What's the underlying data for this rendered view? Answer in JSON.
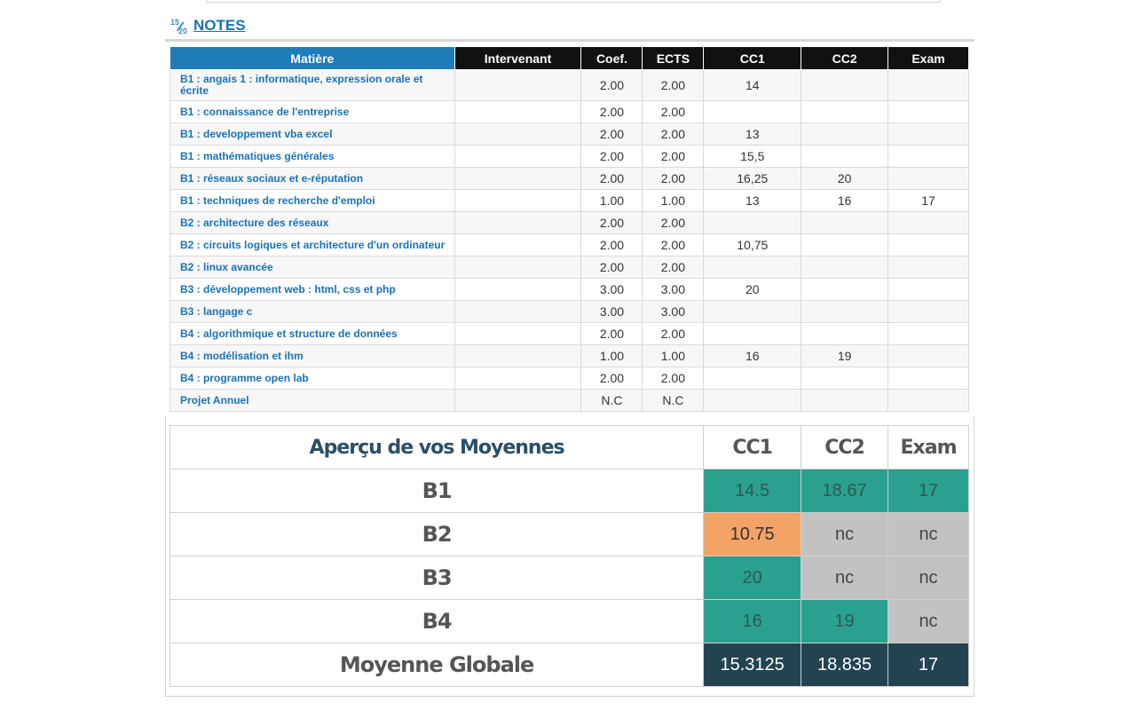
{
  "section": {
    "icon_num": "15",
    "icon_den": "20",
    "title": "NOTES"
  },
  "grades": {
    "headers": [
      "Matière",
      "Intervenant",
      "Coef.",
      "ECTS",
      "CC1",
      "CC2",
      "Exam"
    ],
    "rows": [
      {
        "subject": "B1 : angais 1 : informatique, expression orale et écrite",
        "teacher": "",
        "coef": "2.00",
        "ects": "2.00",
        "cc1": "14",
        "cc2": "",
        "exam": ""
      },
      {
        "subject": "B1 : connaissance de l'entreprise",
        "teacher": "",
        "coef": "2.00",
        "ects": "2.00",
        "cc1": "",
        "cc2": "",
        "exam": ""
      },
      {
        "subject": "B1 : developpement vba excel",
        "teacher": "",
        "coef": "2.00",
        "ects": "2.00",
        "cc1": "13",
        "cc2": "",
        "exam": ""
      },
      {
        "subject": "B1 : mathématiques générales",
        "teacher": "",
        "coef": "2.00",
        "ects": "2.00",
        "cc1": "15,5",
        "cc2": "",
        "exam": ""
      },
      {
        "subject": "B1 : réseaux sociaux et e-réputation",
        "teacher": "",
        "coef": "2.00",
        "ects": "2.00",
        "cc1": "16,25",
        "cc2": "20",
        "exam": ""
      },
      {
        "subject": "B1 : techniques de recherche d'emploi",
        "teacher": "",
        "coef": "1.00",
        "ects": "1.00",
        "cc1": "13",
        "cc2": "16",
        "exam": "17"
      },
      {
        "subject": "B2 : architecture des réseaux",
        "teacher": "",
        "coef": "2.00",
        "ects": "2.00",
        "cc1": "",
        "cc2": "",
        "exam": ""
      },
      {
        "subject": "B2 : circuits logiques et architecture d'un ordinateur",
        "teacher": "",
        "coef": "2.00",
        "ects": "2.00",
        "cc1": "10,75",
        "cc2": "",
        "exam": ""
      },
      {
        "subject": "B2 : linux avancée",
        "teacher": "",
        "coef": "2.00",
        "ects": "2.00",
        "cc1": "",
        "cc2": "",
        "exam": ""
      },
      {
        "subject": "B3 : développement web : html, css et php",
        "teacher": "",
        "coef": "3.00",
        "ects": "3.00",
        "cc1": "20",
        "cc2": "",
        "exam": ""
      },
      {
        "subject": "B3 : langage c",
        "teacher": "",
        "coef": "3.00",
        "ects": "3.00",
        "cc1": "",
        "cc2": "",
        "exam": ""
      },
      {
        "subject": "B4 : algorithmique et structure de données",
        "teacher": "",
        "coef": "2.00",
        "ects": "2.00",
        "cc1": "",
        "cc2": "",
        "exam": ""
      },
      {
        "subject": "B4 : modélisation et ihm",
        "teacher": "",
        "coef": "1.00",
        "ects": "1.00",
        "cc1": "16",
        "cc2": "19",
        "exam": ""
      },
      {
        "subject": "B4 : programme open lab",
        "teacher": "",
        "coef": "2.00",
        "ects": "2.00",
        "cc1": "",
        "cc2": "",
        "exam": ""
      },
      {
        "subject": "Projet Annuel",
        "teacher": "",
        "coef": "N.C",
        "ects": "N.C",
        "cc1": "",
        "cc2": "",
        "exam": ""
      }
    ]
  },
  "summary": {
    "title": "Aperçu de vos Moyennes",
    "headers": [
      "CC1",
      "CC2",
      "Exam"
    ],
    "colors": {
      "good": "#2aa08e",
      "warn": "#f3a366",
      "none": "#c2c2c2",
      "global": "#234351"
    },
    "rows": [
      {
        "label": "B1",
        "cc1": "14.5",
        "cc1_status": "good",
        "cc2": "18.67",
        "cc2_status": "good",
        "exam": "17",
        "exam_status": "good"
      },
      {
        "label": "B2",
        "cc1": "10.75",
        "cc1_status": "warn",
        "cc2": "nc",
        "cc2_status": "none",
        "exam": "nc",
        "exam_status": "none"
      },
      {
        "label": "B3",
        "cc1": "20",
        "cc1_status": "good",
        "cc2": "nc",
        "cc2_status": "none",
        "exam": "nc",
        "exam_status": "none"
      },
      {
        "label": "B4",
        "cc1": "16",
        "cc1_status": "good",
        "cc2": "19",
        "cc2_status": "good",
        "exam": "nc",
        "exam_status": "none"
      },
      {
        "label": "Moyenne Globale",
        "cc1": "15.3125",
        "cc1_status": "global",
        "cc2": "18.835",
        "cc2_status": "global",
        "exam": "17",
        "exam_status": "global"
      }
    ]
  }
}
